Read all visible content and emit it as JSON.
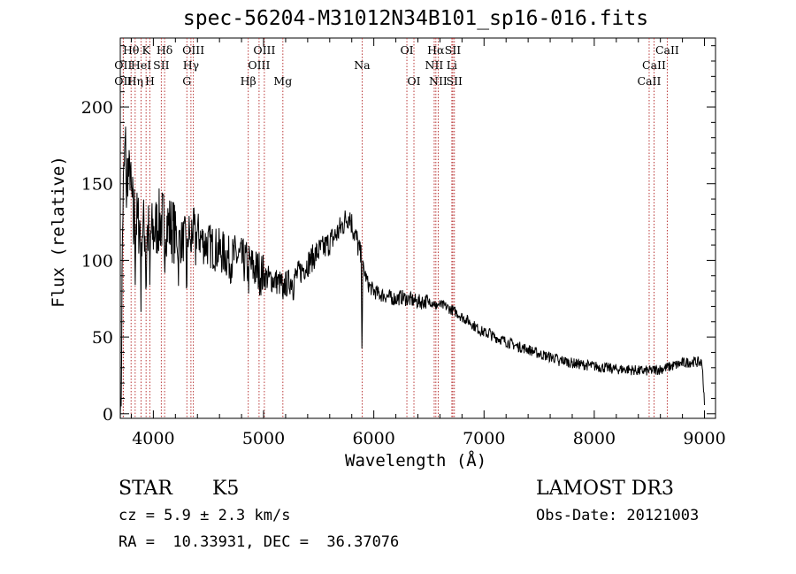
{
  "chart_data": {
    "type": "line",
    "title": "spec-56204-M31012N34B101_sp16-016.fits",
    "xlabel": "Wavelength (Å)",
    "ylabel": "Flux (relative)",
    "xlim": [
      3700,
      9100
    ],
    "ylim": [
      -3,
      245
    ],
    "x_ticks": [
      4000,
      5000,
      6000,
      7000,
      8000,
      9000
    ],
    "y_ticks": [
      0,
      50,
      100,
      150,
      200
    ],
    "line_color": "#000000",
    "marker_color": "#b22222",
    "spectrum_anchors": [
      [
        3700,
        20
      ],
      [
        3725,
        140
      ],
      [
        3745,
        175
      ],
      [
        3770,
        160
      ],
      [
        3800,
        140
      ],
      [
        3850,
        125
      ],
      [
        3900,
        122
      ],
      [
        3950,
        118
      ],
      [
        4000,
        118
      ],
      [
        4050,
        125
      ],
      [
        4100,
        126
      ],
      [
        4150,
        122
      ],
      [
        4200,
        118
      ],
      [
        4250,
        112
      ],
      [
        4300,
        115
      ],
      [
        4350,
        120
      ],
      [
        4400,
        118
      ],
      [
        4450,
        112
      ],
      [
        4500,
        110
      ],
      [
        4550,
        108
      ],
      [
        4600,
        106
      ],
      [
        4650,
        104
      ],
      [
        4700,
        100
      ],
      [
        4750,
        103
      ],
      [
        4800,
        100
      ],
      [
        4850,
        98
      ],
      [
        4900,
        95
      ],
      [
        4950,
        93
      ],
      [
        5000,
        90
      ],
      [
        5050,
        88
      ],
      [
        5100,
        87
      ],
      [
        5150,
        85
      ],
      [
        5200,
        84
      ],
      [
        5250,
        87
      ],
      [
        5300,
        90
      ],
      [
        5350,
        94
      ],
      [
        5400,
        98
      ],
      [
        5450,
        102
      ],
      [
        5500,
        106
      ],
      [
        5550,
        108
      ],
      [
        5600,
        112
      ],
      [
        5650,
        116
      ],
      [
        5700,
        121
      ],
      [
        5750,
        127
      ],
      [
        5780,
        130
      ],
      [
        5800,
        124
      ],
      [
        5850,
        112
      ],
      [
        5900,
        96
      ],
      [
        5950,
        84
      ],
      [
        6000,
        80
      ],
      [
        6050,
        78
      ],
      [
        6100,
        77
      ],
      [
        6150,
        76
      ],
      [
        6200,
        75
      ],
      [
        6250,
        76
      ],
      [
        6300,
        75
      ],
      [
        6350,
        74
      ],
      [
        6400,
        73
      ],
      [
        6450,
        73
      ],
      [
        6500,
        74
      ],
      [
        6550,
        72
      ],
      [
        6600,
        71
      ],
      [
        6650,
        70
      ],
      [
        6700,
        68
      ],
      [
        6750,
        66
      ],
      [
        6800,
        63
      ],
      [
        6850,
        61
      ],
      [
        6900,
        58
      ],
      [
        6950,
        55
      ],
      [
        7000,
        53
      ],
      [
        7100,
        50
      ],
      [
        7200,
        47
      ],
      [
        7300,
        44
      ],
      [
        7400,
        42
      ],
      [
        7500,
        39
      ],
      [
        7600,
        37
      ],
      [
        7700,
        35
      ],
      [
        7800,
        33
      ],
      [
        7900,
        32
      ],
      [
        8000,
        31
      ],
      [
        8100,
        30
      ],
      [
        8200,
        29
      ],
      [
        8300,
        29
      ],
      [
        8400,
        28
      ],
      [
        8500,
        28
      ],
      [
        8600,
        29
      ],
      [
        8700,
        31
      ],
      [
        8800,
        33
      ],
      [
        8900,
        34
      ],
      [
        8980,
        33
      ],
      [
        9000,
        5
      ]
    ],
    "spectrum_features": [
      [
        3705,
        -55
      ],
      [
        3712,
        -30
      ],
      [
        3758,
        -40
      ],
      [
        3790,
        20
      ],
      [
        3820,
        -18
      ],
      [
        3835,
        -35
      ],
      [
        3889,
        -50
      ],
      [
        3934,
        -45
      ],
      [
        3968,
        -40
      ],
      [
        4101,
        -42
      ],
      [
        4226,
        -25
      ],
      [
        4303,
        -45
      ],
      [
        4340,
        -20
      ],
      [
        4383,
        -15
      ],
      [
        4861,
        -12
      ],
      [
        5175,
        -20
      ],
      [
        5270,
        -8
      ],
      [
        5893,
        -57
      ],
      [
        6162,
        -5
      ],
      [
        6495,
        -5
      ],
      [
        6563,
        -6
      ],
      [
        7050,
        4
      ],
      [
        7680,
        -6
      ]
    ],
    "line_markers": [
      {
        "label": "Hθ",
        "x": 3798,
        "row": 0
      },
      {
        "label": "OII",
        "x": 3727,
        "row": 1
      },
      {
        "label": "OII",
        "x": 3727,
        "row": 2
      },
      {
        "label": "Hη",
        "x": 3835,
        "row": 2
      },
      {
        "label": "HeI",
        "x": 3889,
        "row": 1
      },
      {
        "label": "K",
        "x": 3934,
        "row": 0
      },
      {
        "label": "H",
        "x": 3968,
        "row": 2
      },
      {
        "label": "SII",
        "x": 4072,
        "row": 1
      },
      {
        "label": "Hδ",
        "x": 4102,
        "row": 0
      },
      {
        "label": "OIII",
        "x": 4363,
        "row": 0
      },
      {
        "label": "Hγ",
        "x": 4341,
        "row": 1
      },
      {
        "label": "G",
        "x": 4304,
        "row": 2
      },
      {
        "label": "OIII",
        "x": 5007,
        "row": 0
      },
      {
        "label": "OIII",
        "x": 4959,
        "row": 1
      },
      {
        "label": "Hβ",
        "x": 4861,
        "row": 2
      },
      {
        "label": "Mg",
        "x": 5175,
        "row": 2
      },
      {
        "label": "Na",
        "x": 5894,
        "row": 1
      },
      {
        "label": "OI",
        "x": 6300,
        "row": 0
      },
      {
        "label": "OI",
        "x": 6364,
        "row": 2
      },
      {
        "label": "Hα",
        "x": 6563,
        "row": 0
      },
      {
        "label": "NII",
        "x": 6548,
        "row": 1
      },
      {
        "label": "NII",
        "x": 6584,
        "row": 2
      },
      {
        "label": "SII",
        "x": 6717,
        "row": 0
      },
      {
        "label": "Li",
        "x": 6708,
        "row": 1
      },
      {
        "label": "SII",
        "x": 6731,
        "row": 2
      },
      {
        "label": "CaII",
        "x": 8662,
        "row": 0
      },
      {
        "label": "CaII",
        "x": 8542,
        "row": 1
      },
      {
        "label": "CaII",
        "x": 8498,
        "row": 2
      }
    ]
  },
  "info": {
    "class_label": "STAR",
    "subclass": "K5",
    "survey": "LAMOST DR3",
    "redshift_line": "cz = 5.9 ± 2.3 km/s",
    "obs_date_line": "Obs-Date: 20121003",
    "coords_line": "RA =  10.33931, DEC =  36.37076"
  }
}
